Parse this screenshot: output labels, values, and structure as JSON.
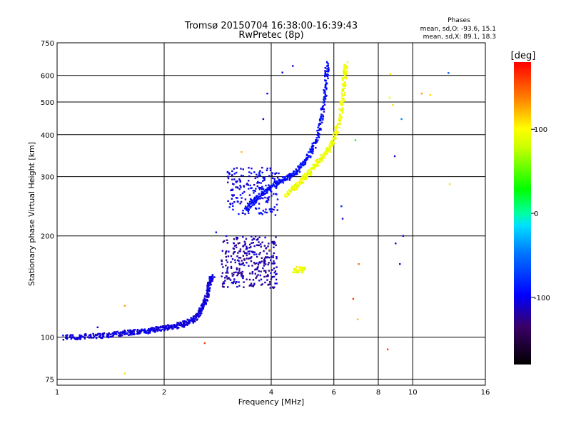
{
  "chart_data": {
    "type": "scatter",
    "title": "Tromsø 20150704 16:38:00-16:39:43",
    "subtitle": "RwPretec (8p)",
    "stats": {
      "heading": "Phases",
      "o_line": "mean, sd,O: -93.6, 15.1",
      "x_line": "mean, sd,X:  89.1, 18.3"
    },
    "xlabel": "Frequency [MHz]",
    "ylabel": "Stationary phase Virtual Height [km]",
    "x_scale": "log",
    "y_scale": "log",
    "xlim": [
      1,
      16
    ],
    "ylim": [
      72,
      750
    ],
    "x_ticks": [
      1,
      2,
      4,
      6,
      8,
      10,
      16
    ],
    "x_tick_labels": [
      "1",
      "2",
      "4",
      "6",
      "8",
      "10",
      "16"
    ],
    "y_ticks": [
      75,
      100,
      200,
      300,
      400,
      500,
      600,
      750
    ],
    "y_tick_labels": [
      "75",
      "100",
      "200",
      "300",
      "400",
      "500",
      "600",
      "750"
    ],
    "grid": true,
    "colorbar": {
      "label": "[deg]",
      "range": [
        -180,
        180
      ],
      "ticks": [
        100,
        0,
        -100
      ],
      "tick_labels": [
        "100",
        "0",
        "-100"
      ]
    },
    "series": [
      {
        "type": "trace",
        "points": [
          [
            1.05,
            100
          ],
          [
            1.15,
            100
          ],
          [
            1.25,
            101
          ],
          [
            1.35,
            101
          ],
          [
            1.45,
            102
          ],
          [
            1.55,
            103
          ],
          [
            1.65,
            103.5
          ],
          [
            1.75,
            104
          ],
          [
            1.85,
            105
          ],
          [
            1.95,
            106
          ],
          [
            2.05,
            107
          ],
          [
            2.15,
            108
          ],
          [
            2.25,
            109
          ],
          [
            2.35,
            111
          ],
          [
            2.45,
            114
          ],
          [
            2.52,
            118
          ],
          [
            2.58,
            124
          ],
          [
            2.63,
            132
          ],
          [
            2.67,
            140
          ],
          [
            2.7,
            147
          ],
          [
            2.74,
            152
          ]
        ],
        "phase": -105
      },
      {
        "type": "cluster",
        "x_range": [
          2.9,
          4.15
        ],
        "y_range": [
          140,
          200
        ],
        "count": 300,
        "phase": -118
      },
      {
        "type": "cluster",
        "x_range": [
          3.0,
          4.2
        ],
        "y_range": [
          230,
          320
        ],
        "count": 200,
        "phase": -100
      },
      {
        "type": "trace",
        "points": [
          [
            3.4,
            240
          ],
          [
            3.6,
            255
          ],
          [
            3.8,
            268
          ],
          [
            4.0,
            280
          ],
          [
            4.2,
            290
          ],
          [
            4.4,
            296
          ],
          [
            4.6,
            304
          ],
          [
            4.8,
            318
          ],
          [
            5.0,
            335
          ],
          [
            5.2,
            358
          ],
          [
            5.4,
            395
          ],
          [
            5.55,
            450
          ],
          [
            5.65,
            520
          ],
          [
            5.72,
            600
          ],
          [
            5.75,
            650
          ]
        ],
        "phase": -95
      },
      {
        "type": "trace",
        "points": [
          [
            4.4,
            265
          ],
          [
            4.6,
            275
          ],
          [
            4.8,
            288
          ],
          [
            5.0,
            300
          ],
          [
            5.2,
            315
          ],
          [
            5.4,
            330
          ],
          [
            5.6,
            345
          ],
          [
            5.8,
            360
          ],
          [
            6.0,
            385
          ],
          [
            6.15,
            420
          ],
          [
            6.3,
            480
          ],
          [
            6.4,
            550
          ],
          [
            6.45,
            610
          ],
          [
            6.48,
            650
          ]
        ],
        "phase": 95
      },
      {
        "type": "cluster",
        "x_range": [
          4.6,
          5.0
        ],
        "y_range": [
          155,
          162
        ],
        "count": 40,
        "phase": 95
      },
      {
        "type": "isolated",
        "points": [
          [
            1.55,
            124,
            130
          ],
          [
            1.55,
            78,
            110
          ],
          [
            1.3,
            107,
            -105
          ],
          [
            2.6,
            96,
            160
          ],
          [
            2.8,
            205,
            -90
          ],
          [
            3.3,
            355,
            120
          ],
          [
            3.8,
            445,
            -100
          ],
          [
            3.9,
            530,
            -100
          ],
          [
            4.3,
            612,
            -95
          ],
          [
            4.6,
            640,
            -110
          ],
          [
            3.95,
            182,
            130
          ],
          [
            6.3,
            245,
            -80
          ],
          [
            6.35,
            225,
            -110
          ],
          [
            6.8,
            130,
            160
          ],
          [
            6.9,
            385,
            20
          ],
          [
            7.0,
            113,
            120
          ],
          [
            7.05,
            165,
            145
          ],
          [
            8.5,
            92,
            160
          ],
          [
            8.6,
            515,
            95
          ],
          [
            8.65,
            605,
            110
          ],
          [
            8.8,
            490,
            110
          ],
          [
            8.9,
            345,
            -110
          ],
          [
            8.95,
            190,
            -110
          ],
          [
            9.2,
            165,
            -110
          ],
          [
            9.3,
            445,
            -40
          ],
          [
            9.4,
            200,
            -100
          ],
          [
            10.6,
            530,
            130
          ],
          [
            11.2,
            525,
            110
          ],
          [
            12.6,
            610,
            -60
          ],
          [
            12.7,
            285,
            110
          ]
        ]
      }
    ]
  }
}
